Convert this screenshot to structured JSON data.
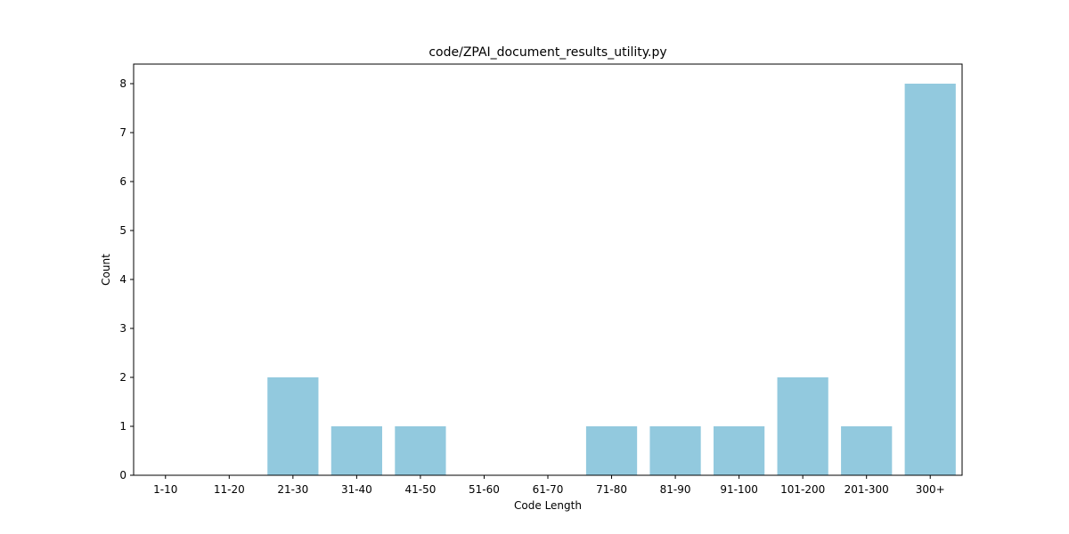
{
  "chart_data": {
    "type": "bar",
    "title": "code/ZPAI_document_results_utility.py",
    "xlabel": "Code Length",
    "ylabel": "Count",
    "categories": [
      "1-10",
      "11-20",
      "21-30",
      "31-40",
      "41-50",
      "51-60",
      "61-70",
      "71-80",
      "81-90",
      "91-100",
      "101-200",
      "201-300",
      "300+"
    ],
    "values": [
      0,
      0,
      2,
      1,
      1,
      0,
      0,
      1,
      1,
      1,
      2,
      1,
      8
    ],
    "ylim": [
      0,
      8.4
    ],
    "yticks": [
      0,
      1,
      2,
      3,
      4,
      5,
      6,
      7,
      8
    ],
    "grid": false,
    "bar_color": "#92c9de"
  }
}
